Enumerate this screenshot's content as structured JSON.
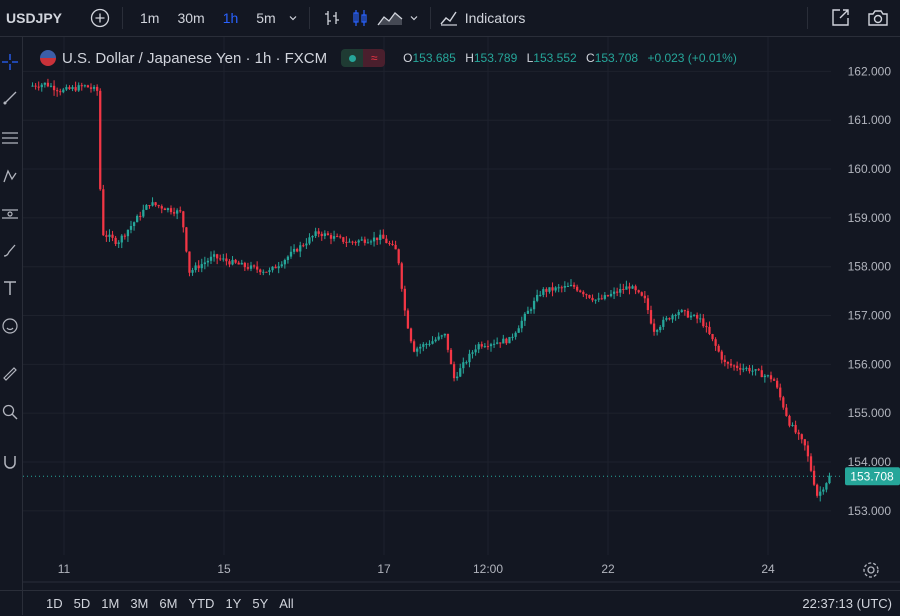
{
  "toolbar": {
    "symbol": "USDJPY",
    "timeframes": [
      {
        "label": "1m",
        "active": false
      },
      {
        "label": "30m",
        "active": false
      },
      {
        "label": "1h",
        "active": true
      },
      {
        "label": "5m",
        "active": false
      }
    ],
    "indicators_label": "Indicators",
    "icons": [
      "add-symbol-icon",
      "chevron-down-icon",
      "bar-style-icon",
      "candle-style-icon",
      "area-style-icon",
      "chevron-down-icon",
      "indicators-icon",
      "fullscreen-icon",
      "snapshot-icon"
    ]
  },
  "legend": {
    "title": "U.S. Dollar / Japanese Yen · 1h · FXCM",
    "o_label": "O",
    "o": "153.685",
    "h_label": "H",
    "h": "153.789",
    "l_label": "L",
    "l": "153.552",
    "c_label": "C",
    "c": "153.708",
    "change": "+0.023 (+0.01%)",
    "pill_text": "≈"
  },
  "colors": {
    "up": "#26a69a",
    "down": "#f23645",
    "background": "#131722",
    "grid": "#1e222d",
    "accent": "#2962ff"
  },
  "bottombar": {
    "ranges": [
      "1D",
      "5D",
      "1M",
      "3M",
      "6M",
      "YTD",
      "1Y",
      "5Y",
      "All"
    ],
    "clock": "22:37:13 (UTC)"
  },
  "chart_data": {
    "type": "candlestick",
    "price_ticks": [
      "162.000",
      "161.000",
      "160.000",
      "159.000",
      "158.000",
      "157.000",
      "156.000",
      "155.000",
      "154.000",
      "153.000"
    ],
    "ylim": [
      152.3,
      162.5
    ],
    "x_ticks": [
      {
        "label": "11",
        "pos": 0
      },
      {
        "label": "15",
        "pos": 0.2
      },
      {
        "label": "17",
        "pos": 0.4
      },
      {
        "label": "12:00",
        "pos": 0.53
      },
      {
        "label": "22",
        "pos": 0.68
      },
      {
        "label": "24",
        "pos": 0.88
      }
    ],
    "last_price": "153.708",
    "last_price_value": 153.708,
    "path_keypoints": [
      [
        0,
        161.7
      ],
      [
        0.02,
        161.75
      ],
      [
        0.04,
        161.6
      ],
      [
        0.07,
        161.7
      ],
      [
        0.085,
        161.6
      ],
      [
        0.09,
        158.7
      ],
      [
        0.11,
        158.5
      ],
      [
        0.13,
        158.9
      ],
      [
        0.15,
        159.3
      ],
      [
        0.19,
        159.1
      ],
      [
        0.2,
        157.9
      ],
      [
        0.23,
        158.2
      ],
      [
        0.27,
        158.0
      ],
      [
        0.3,
        157.9
      ],
      [
        0.36,
        158.7
      ],
      [
        0.4,
        158.5
      ],
      [
        0.44,
        158.6
      ],
      [
        0.46,
        158.3
      ],
      [
        0.47,
        157.0
      ],
      [
        0.48,
        156.3
      ],
      [
        0.52,
        156.6
      ],
      [
        0.53,
        155.7
      ],
      [
        0.56,
        156.4
      ],
      [
        0.6,
        156.5
      ],
      [
        0.64,
        157.5
      ],
      [
        0.68,
        157.6
      ],
      [
        0.71,
        157.3
      ],
      [
        0.75,
        157.6
      ],
      [
        0.77,
        157.3
      ],
      [
        0.78,
        156.7
      ],
      [
        0.81,
        157.1
      ],
      [
        0.84,
        156.9
      ],
      [
        0.87,
        156.0
      ],
      [
        0.9,
        155.9
      ],
      [
        0.93,
        155.7
      ],
      [
        0.95,
        154.8
      ],
      [
        0.97,
        154.3
      ],
      [
        0.985,
        153.3
      ],
      [
        1.0,
        153.7
      ]
    ]
  }
}
